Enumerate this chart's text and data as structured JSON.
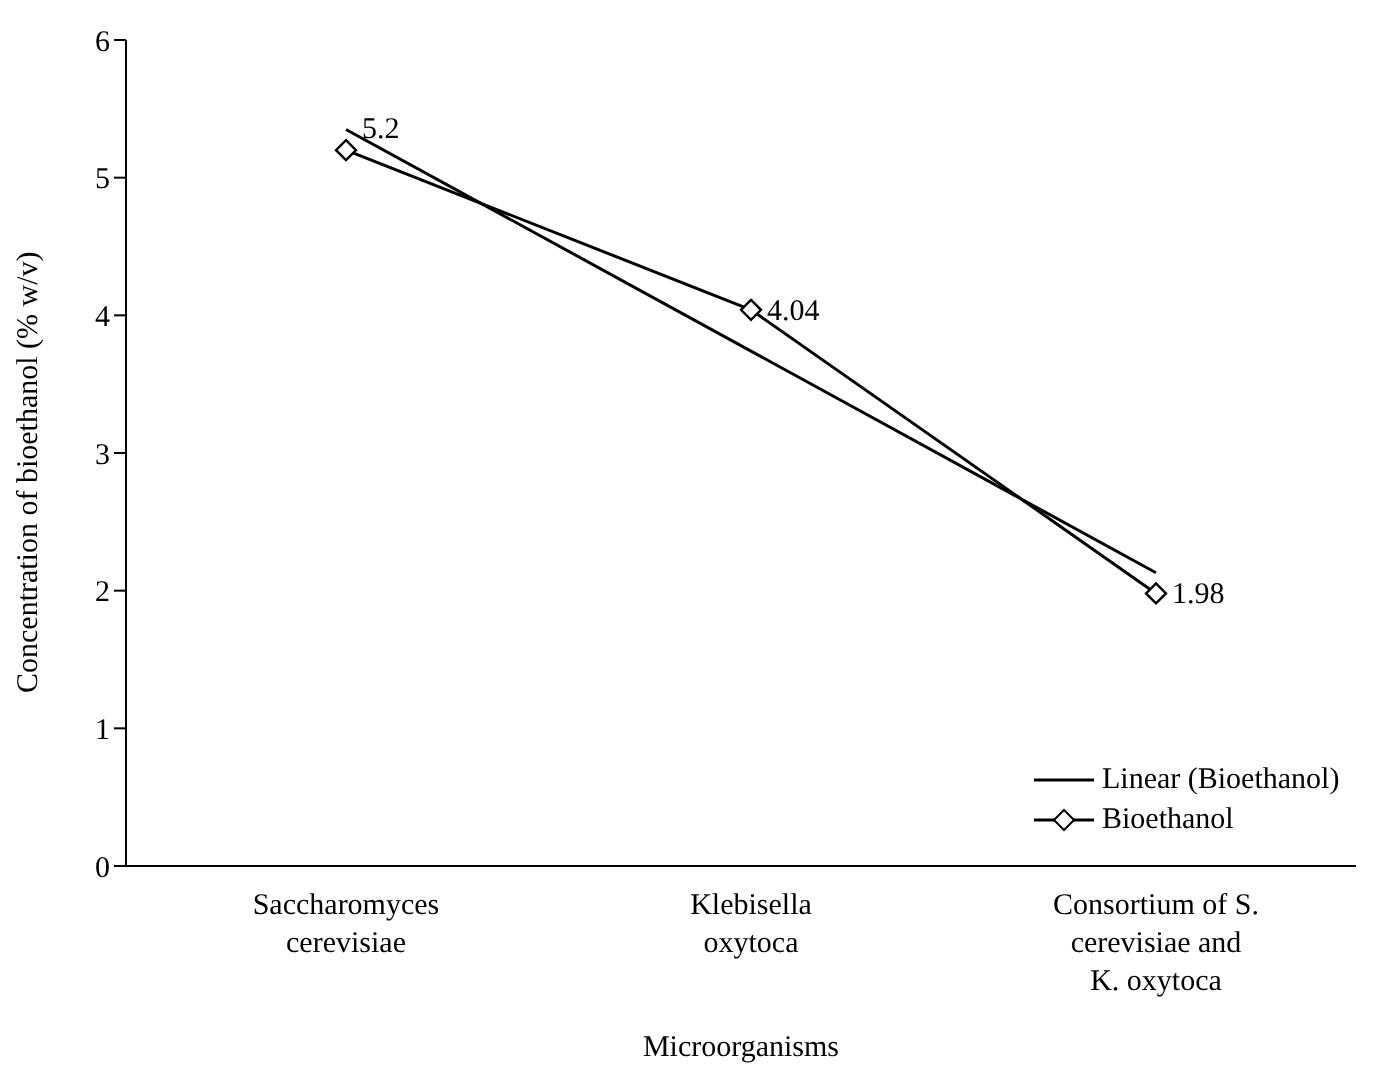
{
  "chart_data": {
    "type": "line",
    "xlabel": "Microorganisms",
    "ylabel": "Concentration  of bioethanol (% w/v)",
    "categories": [
      "Saccharomyces cerevisiae",
      "Klebisella oxytoca",
      "Consortium of S. cerevisiae and K. oxytoca"
    ],
    "series": [
      {
        "name": "Linear (Bioethanol)",
        "color": "#000000",
        "values": [
          5.35,
          3.74,
          2.13
        ],
        "marker": "none"
      },
      {
        "name": "Bioethanol",
        "color": "#000000",
        "values": [
          5.2,
          4.04,
          1.98
        ],
        "marker": "diamond",
        "value_labels": [
          "5.2",
          "4.04",
          "1.98"
        ]
      }
    ],
    "ylim": [
      0,
      6
    ],
    "yticks": [
      0,
      1,
      2,
      3,
      4,
      5,
      6
    ],
    "grid": false,
    "legend": "bottom right",
    "line_style": "solid"
  }
}
